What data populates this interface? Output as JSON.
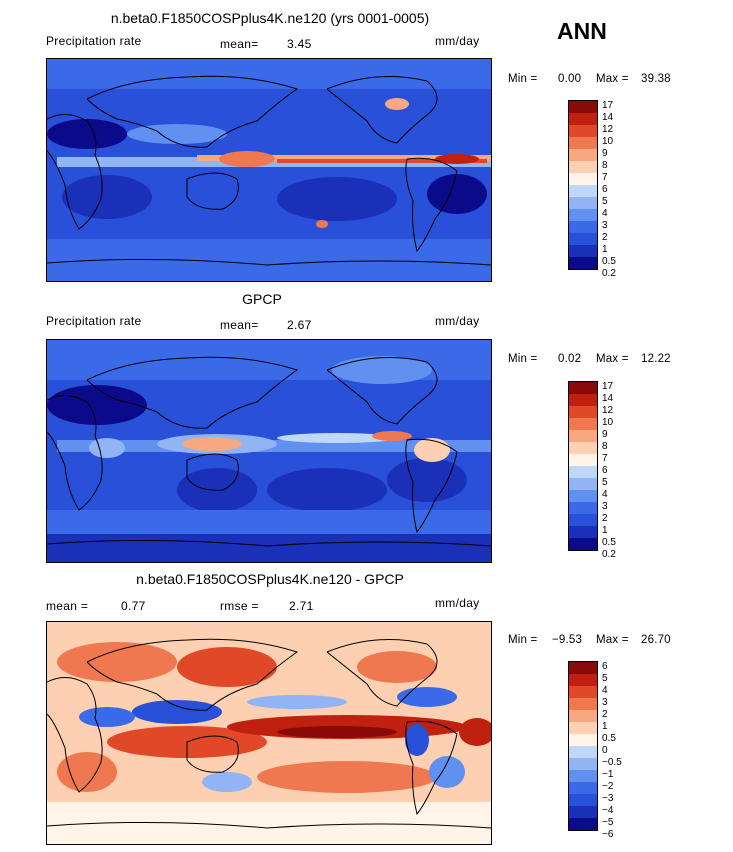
{
  "season": "ANN",
  "colors": {
    "abs": [
      "#0a0a8a",
      "#1a30b8",
      "#2850d8",
      "#3a6ae8",
      "#6090f0",
      "#90b4f4",
      "#c0d8f8",
      "#fff4e8",
      "#fcd0b0",
      "#f8a880",
      "#f07850",
      "#e04828",
      "#c02010",
      "#8a0a08"
    ],
    "diff": [
      "#0a0a8a",
      "#1a30b8",
      "#2850d8",
      "#3a6ae8",
      "#6090f0",
      "#90b4f4",
      "#c0d8f8",
      "#fff4e8",
      "#fcd0b0",
      "#f8a880",
      "#f07850",
      "#e04828",
      "#c02010",
      "#8a0a08"
    ]
  },
  "panels": [
    {
      "id": "model",
      "title": "n.beta0.F1850COSPplus4K.ne120 (yrs 0001-0005)",
      "left_label": "Precipitation rate",
      "stat1_label": "mean=",
      "stat1_value": "3.45",
      "stat2_label": "",
      "stat2_value": "",
      "units": "mm/day",
      "min_label": "Min =",
      "min_value": "0.00",
      "max_label": "Max =",
      "max_value": "39.38",
      "colorbar_labels": [
        "17",
        "14",
        "12",
        "10",
        "9",
        "8",
        "7",
        "6",
        "5",
        "4",
        "3",
        "2",
        "1",
        "0.5",
        "0.2"
      ]
    },
    {
      "id": "obs",
      "title": "GPCP",
      "left_label": "Precipitation rate",
      "stat1_label": "mean=",
      "stat1_value": "2.67",
      "stat2_label": "",
      "stat2_value": "",
      "units": "mm/day",
      "min_label": "Min =",
      "min_value": "0.02",
      "max_label": "Max =",
      "max_value": "12.22",
      "colorbar_labels": [
        "17",
        "14",
        "12",
        "10",
        "9",
        "8",
        "7",
        "6",
        "5",
        "4",
        "3",
        "2",
        "1",
        "0.5",
        "0.2"
      ]
    },
    {
      "id": "diff",
      "title": "n.beta0.F1850COSPplus4K.ne120 - GPCP",
      "left_label": "",
      "stat1_label": "mean =",
      "stat1_value": "0.77",
      "stat2_label": "rmse =",
      "stat2_value": "2.71",
      "units": "mm/day",
      "min_label": "Min =",
      "min_value": "−9.53",
      "max_label": "Max =",
      "max_value": "26.70",
      "colorbar_labels": [
        "6",
        "5",
        "4",
        "3",
        "2",
        "1",
        "0.5",
        "0",
        "−0.5",
        "−1",
        "−2",
        "−3",
        "−4",
        "−5",
        "−6"
      ]
    }
  ],
  "chart_data": [
    {
      "type": "heatmap",
      "title": "n.beta0.F1850COSPplus4K.ne120 (yrs 0001-0005)",
      "variable": "Precipitation rate",
      "units": "mm/day",
      "mean": 3.45,
      "min": 0.0,
      "max": 39.38,
      "contour_levels": [
        0.2,
        0.5,
        1,
        2,
        3,
        4,
        5,
        6,
        7,
        8,
        9,
        10,
        12,
        14,
        17
      ]
    },
    {
      "type": "heatmap",
      "title": "GPCP",
      "variable": "Precipitation rate",
      "units": "mm/day",
      "mean": 2.67,
      "min": 0.02,
      "max": 12.22,
      "contour_levels": [
        0.2,
        0.5,
        1,
        2,
        3,
        4,
        5,
        6,
        7,
        8,
        9,
        10,
        12,
        14,
        17
      ]
    },
    {
      "type": "heatmap",
      "title": "n.beta0.F1850COSPplus4K.ne120 - GPCP",
      "units": "mm/day",
      "mean": 0.77,
      "rmse": 2.71,
      "min": -9.53,
      "max": 26.7,
      "contour_levels": [
        -6,
        -5,
        -4,
        -3,
        -2,
        -1,
        -0.5,
        0,
        0.5,
        1,
        2,
        3,
        4,
        5,
        6
      ]
    }
  ]
}
